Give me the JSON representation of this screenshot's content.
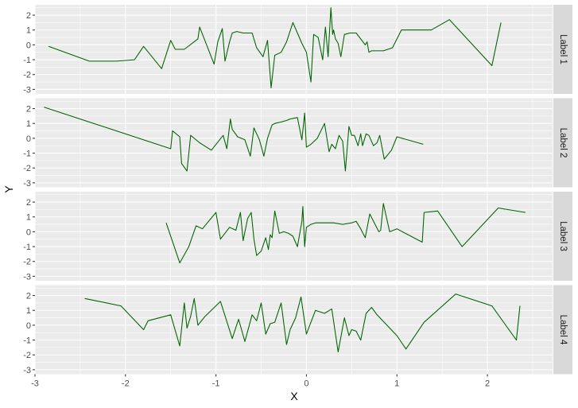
{
  "chart_data": {
    "type": "line",
    "layout": "faceted-rows",
    "title": "",
    "xlabel": "X",
    "ylabel": "Y",
    "xlim": [
      -3.0,
      2.72
    ],
    "ylim": [
      -3.3,
      2.7
    ],
    "x_ticks": [
      -3,
      -2,
      -1,
      0,
      1,
      2
    ],
    "y_ticks": [
      -3,
      -2,
      -1,
      0,
      1,
      2
    ],
    "grid": true,
    "line_color": "#006400",
    "panel_background": "#ebebeb",
    "strip_background": "#d9d9d9",
    "facets": [
      {
        "label": "Label 1",
        "x": [
          -2.85,
          -2.4,
          -2.1,
          -1.9,
          -1.8,
          -1.6,
          -1.5,
          -1.45,
          -1.35,
          -1.2,
          -1.18,
          -1.02,
          -0.98,
          -0.93,
          -0.9,
          -0.85,
          -0.82,
          -0.77,
          -0.7,
          -0.6,
          -0.55,
          -0.48,
          -0.43,
          -0.39,
          -0.35,
          -0.28,
          -0.22,
          -0.15,
          -0.05,
          0.0,
          0.05,
          0.08,
          0.13,
          0.18,
          0.21,
          0.24,
          0.27,
          0.29,
          0.3,
          0.32,
          0.35,
          0.38,
          0.42,
          0.48,
          0.55,
          0.65,
          0.67,
          0.69,
          0.72,
          0.85,
          0.95,
          1.05,
          1.2,
          1.38,
          1.58,
          2.05,
          2.15
        ],
        "y": [
          -0.1,
          -1.1,
          -1.1,
          -1.0,
          -0.1,
          -1.6,
          0.3,
          -0.3,
          -0.3,
          0.4,
          1.2,
          -1.3,
          0.2,
          1.1,
          -1.1,
          0.2,
          0.8,
          0.9,
          0.8,
          0.8,
          -0.2,
          -0.8,
          0.3,
          -2.9,
          -0.7,
          -0.5,
          0.2,
          1.5,
          0.1,
          -0.5,
          -2.5,
          0.7,
          0.5,
          -1.0,
          1.2,
          -0.8,
          2.5,
          0.7,
          1.0,
          0.4,
          0.1,
          -0.8,
          0.7,
          0.8,
          0.8,
          0.0,
          0.2,
          -0.5,
          -0.4,
          -0.4,
          -0.2,
          1.0,
          1.0,
          1.0,
          1.7,
          -1.4,
          1.5
        ]
      },
      {
        "label": "Label 2",
        "x": [
          -2.9,
          -1.5,
          -1.48,
          -1.4,
          -1.38,
          -1.32,
          -1.28,
          -1.18,
          -1.05,
          -0.92,
          -0.88,
          -0.84,
          -0.82,
          -0.76,
          -0.68,
          -0.62,
          -0.58,
          -0.52,
          -0.47,
          -0.43,
          -0.38,
          -0.35,
          -0.28,
          -0.22,
          -0.18,
          -0.1,
          -0.05,
          -0.02,
          0.0,
          0.05,
          0.12,
          0.2,
          0.25,
          0.28,
          0.32,
          0.36,
          0.38,
          0.4,
          0.43,
          0.47,
          0.5,
          0.53,
          0.57,
          0.6,
          0.62,
          0.66,
          0.69,
          0.74,
          0.78,
          0.81,
          0.86,
          0.94,
          1.0,
          1.29
        ],
        "y": [
          2.1,
          -0.7,
          0.5,
          0.1,
          -1.7,
          -2.2,
          0.2,
          -0.3,
          -0.8,
          0.2,
          -0.7,
          1.3,
          0.6,
          0.1,
          -0.1,
          -1.2,
          0.7,
          -0.1,
          -1.2,
          0.0,
          0.9,
          1.0,
          1.1,
          1.2,
          1.3,
          1.4,
          -0.1,
          1.7,
          -0.6,
          -0.4,
          0.0,
          1.0,
          -0.9,
          -0.4,
          -0.7,
          0.2,
          0.0,
          -0.2,
          -2.2,
          0.8,
          0.2,
          0.2,
          -0.5,
          0.3,
          -0.5,
          0.3,
          0.2,
          -0.5,
          -0.3,
          0.2,
          -1.4,
          -0.8,
          0.1,
          -0.4
        ]
      },
      {
        "label": "Label 3",
        "x": [
          -1.55,
          -1.4,
          -1.3,
          -1.22,
          -1.15,
          -1.0,
          -0.95,
          -0.85,
          -0.78,
          -0.73,
          -0.7,
          -0.65,
          -0.61,
          -0.58,
          -0.55,
          -0.5,
          -0.45,
          -0.42,
          -0.4,
          -0.38,
          -0.35,
          -0.3,
          -0.25,
          -0.2,
          -0.15,
          -0.1,
          -0.05,
          -0.04,
          -0.02,
          0.0,
          0.05,
          0.1,
          0.2,
          0.3,
          0.4,
          0.5,
          0.55,
          0.6,
          0.65,
          0.7,
          0.8,
          0.82,
          0.85,
          0.92,
          1.0,
          1.28,
          1.3,
          1.45,
          1.72,
          2.12,
          2.42
        ],
        "y": [
          0.6,
          -2.1,
          -1.0,
          0.4,
          0.2,
          1.3,
          -0.5,
          0.3,
          0.1,
          1.3,
          -0.6,
          0.9,
          1.3,
          -0.5,
          -1.6,
          -1.3,
          -0.4,
          -1.2,
          -0.2,
          -0.4,
          1.4,
          -0.1,
          0.0,
          -0.1,
          -0.3,
          -1.0,
          0.7,
          1.7,
          -1.0,
          0.3,
          0.5,
          0.6,
          0.6,
          0.6,
          0.5,
          0.6,
          0.7,
          0.2,
          -0.4,
          1.2,
          0.0,
          0.1,
          1.9,
          0.0,
          0.2,
          -0.7,
          1.3,
          1.4,
          -1.0,
          1.6,
          1.3
        ]
      },
      {
        "label": "Label 4",
        "x": [
          -2.45,
          -2.05,
          -1.8,
          -1.75,
          -1.5,
          -1.4,
          -1.35,
          -1.32,
          -1.28,
          -1.24,
          -1.2,
          -1.12,
          -0.95,
          -0.82,
          -0.75,
          -0.68,
          -0.6,
          -0.55,
          -0.5,
          -0.45,
          -0.4,
          -0.35,
          -0.28,
          -0.22,
          -0.18,
          -0.12,
          -0.06,
          0.0,
          0.1,
          0.2,
          0.28,
          0.35,
          0.42,
          0.47,
          0.5,
          0.55,
          0.6,
          0.66,
          0.72,
          0.78,
          1.0,
          1.1,
          1.3,
          1.65,
          2.05,
          2.32,
          2.36
        ],
        "y": [
          1.8,
          1.3,
          -0.3,
          0.3,
          0.7,
          -1.4,
          1.5,
          -0.2,
          0.6,
          1.8,
          0.0,
          0.6,
          1.6,
          -0.9,
          0.4,
          -1.1,
          0.7,
          0.3,
          1.5,
          -0.6,
          0.1,
          0.2,
          1.5,
          -1.3,
          -0.3,
          0.5,
          1.9,
          -0.6,
          1.0,
          0.8,
          1.1,
          -1.8,
          0.5,
          -0.7,
          -0.3,
          -0.4,
          -1.0,
          0.8,
          1.2,
          0.7,
          -0.7,
          -1.6,
          0.2,
          2.1,
          1.3,
          -1.0,
          1.3
        ]
      }
    ]
  }
}
